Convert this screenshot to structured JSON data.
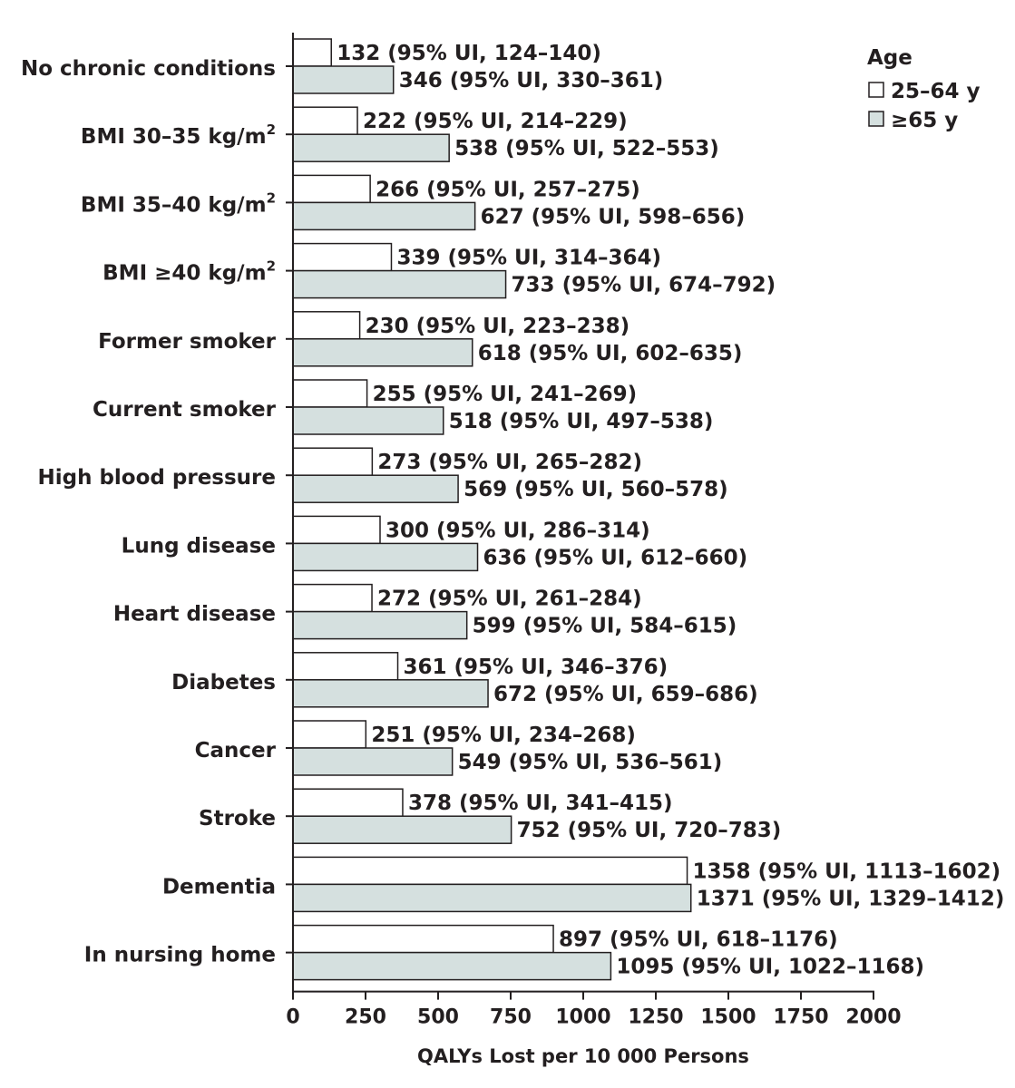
{
  "chart_data": {
    "type": "bar",
    "orientation": "horizontal",
    "categories": [
      {
        "label": "No chronic conditions",
        "sup": ""
      },
      {
        "label": "BMI 30–35 kg/m",
        "sup": "2"
      },
      {
        "label": "BMI 35–40 kg/m",
        "sup": "2"
      },
      {
        "label": "BMI ≥40 kg/m",
        "sup": "2"
      },
      {
        "label": "Former smoker",
        "sup": ""
      },
      {
        "label": "Current smoker",
        "sup": ""
      },
      {
        "label": "High blood pressure",
        "sup": ""
      },
      {
        "label": "Lung disease",
        "sup": ""
      },
      {
        "label": "Heart disease",
        "sup": ""
      },
      {
        "label": "Diabetes",
        "sup": ""
      },
      {
        "label": "Cancer",
        "sup": ""
      },
      {
        "label": "Stroke",
        "sup": ""
      },
      {
        "label": "Dementia",
        "sup": ""
      },
      {
        "label": "In nursing home",
        "sup": ""
      }
    ],
    "series": [
      {
        "name": "25–64 y",
        "color": "#ffffff",
        "values": [
          132,
          222,
          266,
          339,
          230,
          255,
          273,
          300,
          272,
          361,
          251,
          378,
          1358,
          897
        ],
        "labels": [
          "132 (95% UI, 124–140)",
          "222 (95% UI, 214–229)",
          "266 (95% UI, 257–275)",
          "339 (95% UI, 314–364)",
          "230 (95% UI, 223–238)",
          "255 (95% UI, 241–269)",
          "273 (95% UI, 265–282)",
          "300 (95% UI, 286–314)",
          "272 (95% UI, 261–284)",
          "361 (95% UI, 346–376)",
          "251 (95% UI, 234–268)",
          "378 (95% UI, 341–415)",
          "1358 (95% UI, 1113–1602)",
          "897 (95% UI, 618–1176)"
        ]
      },
      {
        "name": "≥65 y",
        "color": "#d5e0df",
        "values": [
          346,
          538,
          627,
          733,
          618,
          518,
          569,
          636,
          599,
          672,
          549,
          752,
          1371,
          1095
        ],
        "labels": [
          "346 (95% UI, 330–361)",
          "538 (95% UI, 522–553)",
          "627 (95% UI, 598–656)",
          "733 (95% UI, 674–792)",
          "618 (95% UI, 602–635)",
          "518 (95% UI, 497–538)",
          "569 (95% UI, 560–578)",
          "636 (95% UI, 612–660)",
          "599 (95% UI, 584–615)",
          "672 (95% UI, 659–686)",
          "549 (95% UI, 536–561)",
          "752 (95% UI, 720–783)",
          "1371 (95% UI, 1329–1412)",
          "1095 (95% UI, 1022–1168)"
        ]
      }
    ],
    "xlim": [
      0,
      2000
    ],
    "xticks": [
      0,
      250,
      500,
      750,
      1000,
      1250,
      1500,
      1750,
      2000
    ],
    "xlabel": "QALYs Lost per 10 000 Persons",
    "ylabel": "",
    "title": "",
    "legend": {
      "title": "Age",
      "position": "top-right"
    },
    "grid": false
  },
  "colors": {
    "ink": "#231f20",
    "bar_young": "#ffffff",
    "bar_old": "#d5e0df"
  }
}
